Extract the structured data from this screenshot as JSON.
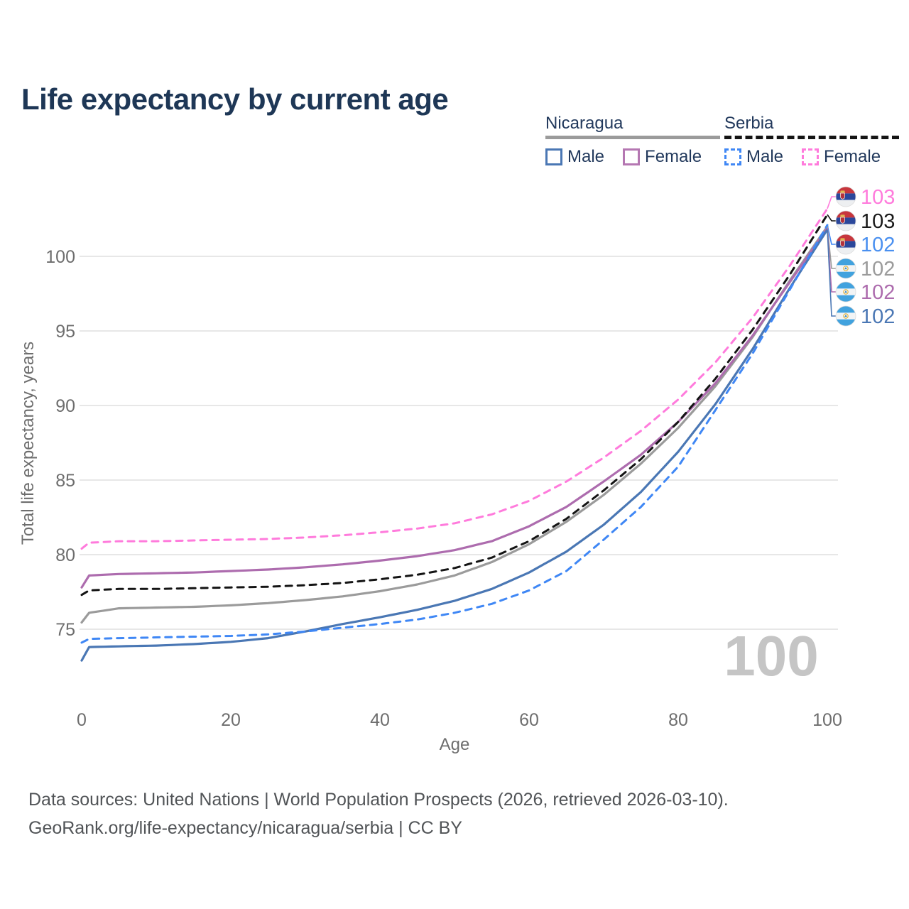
{
  "title": "Life expectancy by current age",
  "legend": {
    "groups": [
      {
        "title": "Nicaragua",
        "line_style": "solid",
        "items": [
          {
            "label": "Male",
            "color": "#4a77b4"
          },
          {
            "label": "Female",
            "color": "#b577b2"
          }
        ]
      },
      {
        "title": "Serbia",
        "line_style": "dashed",
        "items": [
          {
            "label": "Male",
            "color": "#3f87f5"
          },
          {
            "label": "Female",
            "color": "#ff7bdc"
          }
        ]
      }
    ]
  },
  "watermark": "100",
  "footer": {
    "line1": "Data sources: United Nations | World Population Prospects (2026, retrieved 2026-03-10).",
    "line2": "GeoRank.org/life-expectancy/nicaragua/serbia | CC BY"
  },
  "chart_data": {
    "type": "line",
    "title": "Life expectancy by current age",
    "xlabel": "Age",
    "ylabel": "Total life expectancy, years",
    "x_ticks": [
      0,
      20,
      40,
      60,
      80,
      100
    ],
    "y_ticks": [
      75,
      80,
      85,
      90,
      95,
      100
    ],
    "xlim": [
      0,
      100
    ],
    "ylim": [
      71.5,
      104.5
    ],
    "grid": "horizontal",
    "legend_position": "top-right",
    "x": [
      0,
      1,
      5,
      10,
      15,
      20,
      25,
      30,
      35,
      40,
      45,
      50,
      55,
      60,
      65,
      70,
      75,
      80,
      85,
      90,
      95,
      100
    ],
    "series": [
      {
        "name": "Nicaragua Total",
        "country": "nicaragua",
        "sex": "total",
        "color": "#9b9b9b",
        "dash": "solid",
        "end_label": "102",
        "values": [
          75.45,
          76.1,
          76.4,
          76.45,
          76.5,
          76.6,
          76.75,
          76.95,
          77.2,
          77.55,
          78.0,
          78.6,
          79.5,
          80.7,
          82.2,
          84.0,
          86.1,
          88.5,
          91.3,
          94.6,
          98.4,
          102.0
        ]
      },
      {
        "name": "Nicaragua Female",
        "country": "nicaragua",
        "sex": "female",
        "color": "#ad6cae",
        "dash": "solid",
        "end_label": "102",
        "values": [
          77.8,
          78.6,
          78.7,
          78.75,
          78.8,
          78.9,
          79.0,
          79.15,
          79.35,
          79.6,
          79.9,
          80.3,
          80.9,
          81.9,
          83.2,
          84.9,
          86.7,
          88.9,
          91.5,
          94.7,
          98.3,
          101.9
        ]
      },
      {
        "name": "Nicaragua Male",
        "country": "nicaragua",
        "sex": "male",
        "color": "#4a77b4",
        "dash": "solid",
        "end_label": "102",
        "values": [
          72.9,
          73.8,
          73.85,
          73.9,
          74.0,
          74.15,
          74.4,
          74.85,
          75.35,
          75.8,
          76.3,
          76.9,
          77.7,
          78.8,
          80.2,
          82.0,
          84.2,
          86.9,
          90.1,
          93.8,
          97.9,
          101.8
        ]
      },
      {
        "name": "Serbia Female",
        "country": "serbia",
        "sex": "female",
        "color": "#ff7bdc",
        "dash": "dashed",
        "end_label": "103",
        "values": [
          80.4,
          80.8,
          80.9,
          80.9,
          80.95,
          81.0,
          81.05,
          81.15,
          81.3,
          81.5,
          81.75,
          82.1,
          82.7,
          83.6,
          84.9,
          86.5,
          88.3,
          90.4,
          92.9,
          95.9,
          99.4,
          103.2
        ]
      },
      {
        "name": "Serbia Total",
        "country": "serbia",
        "sex": "total",
        "color": "#141414",
        "dash": "dashed",
        "end_label": "103",
        "values": [
          77.3,
          77.6,
          77.7,
          77.7,
          77.75,
          77.8,
          77.85,
          77.95,
          78.1,
          78.35,
          78.65,
          79.1,
          79.8,
          80.9,
          82.4,
          84.3,
          86.4,
          88.9,
          91.8,
          95.1,
          98.8,
          102.8
        ]
      },
      {
        "name": "Serbia Male",
        "country": "serbia",
        "sex": "male",
        "color": "#3f87f5",
        "dash": "dashed",
        "end_label": "102",
        "values": [
          74.1,
          74.35,
          74.4,
          74.45,
          74.5,
          74.55,
          74.65,
          74.85,
          75.1,
          75.35,
          75.65,
          76.1,
          76.7,
          77.6,
          78.9,
          81.0,
          83.2,
          85.9,
          89.7,
          93.5,
          97.8,
          102.1
        ]
      }
    ],
    "end_label_rows": [
      {
        "series": "Serbia Female",
        "flag": "serbia",
        "text": "103",
        "color": "#ff7bdc"
      },
      {
        "series": "Serbia Total",
        "flag": "serbia",
        "text": "103",
        "color": "#1a1a1a"
      },
      {
        "series": "Serbia Male",
        "flag": "serbia",
        "text": "102",
        "color": "#4a90f0"
      },
      {
        "series": "Nicaragua Total",
        "flag": "nicaragua",
        "text": "102",
        "color": "#9b9b9b"
      },
      {
        "series": "Nicaragua Female",
        "flag": "nicaragua",
        "text": "102",
        "color": "#ad6cae"
      },
      {
        "series": "Nicaragua Male",
        "flag": "nicaragua",
        "text": "102",
        "color": "#4a77b4"
      }
    ]
  }
}
